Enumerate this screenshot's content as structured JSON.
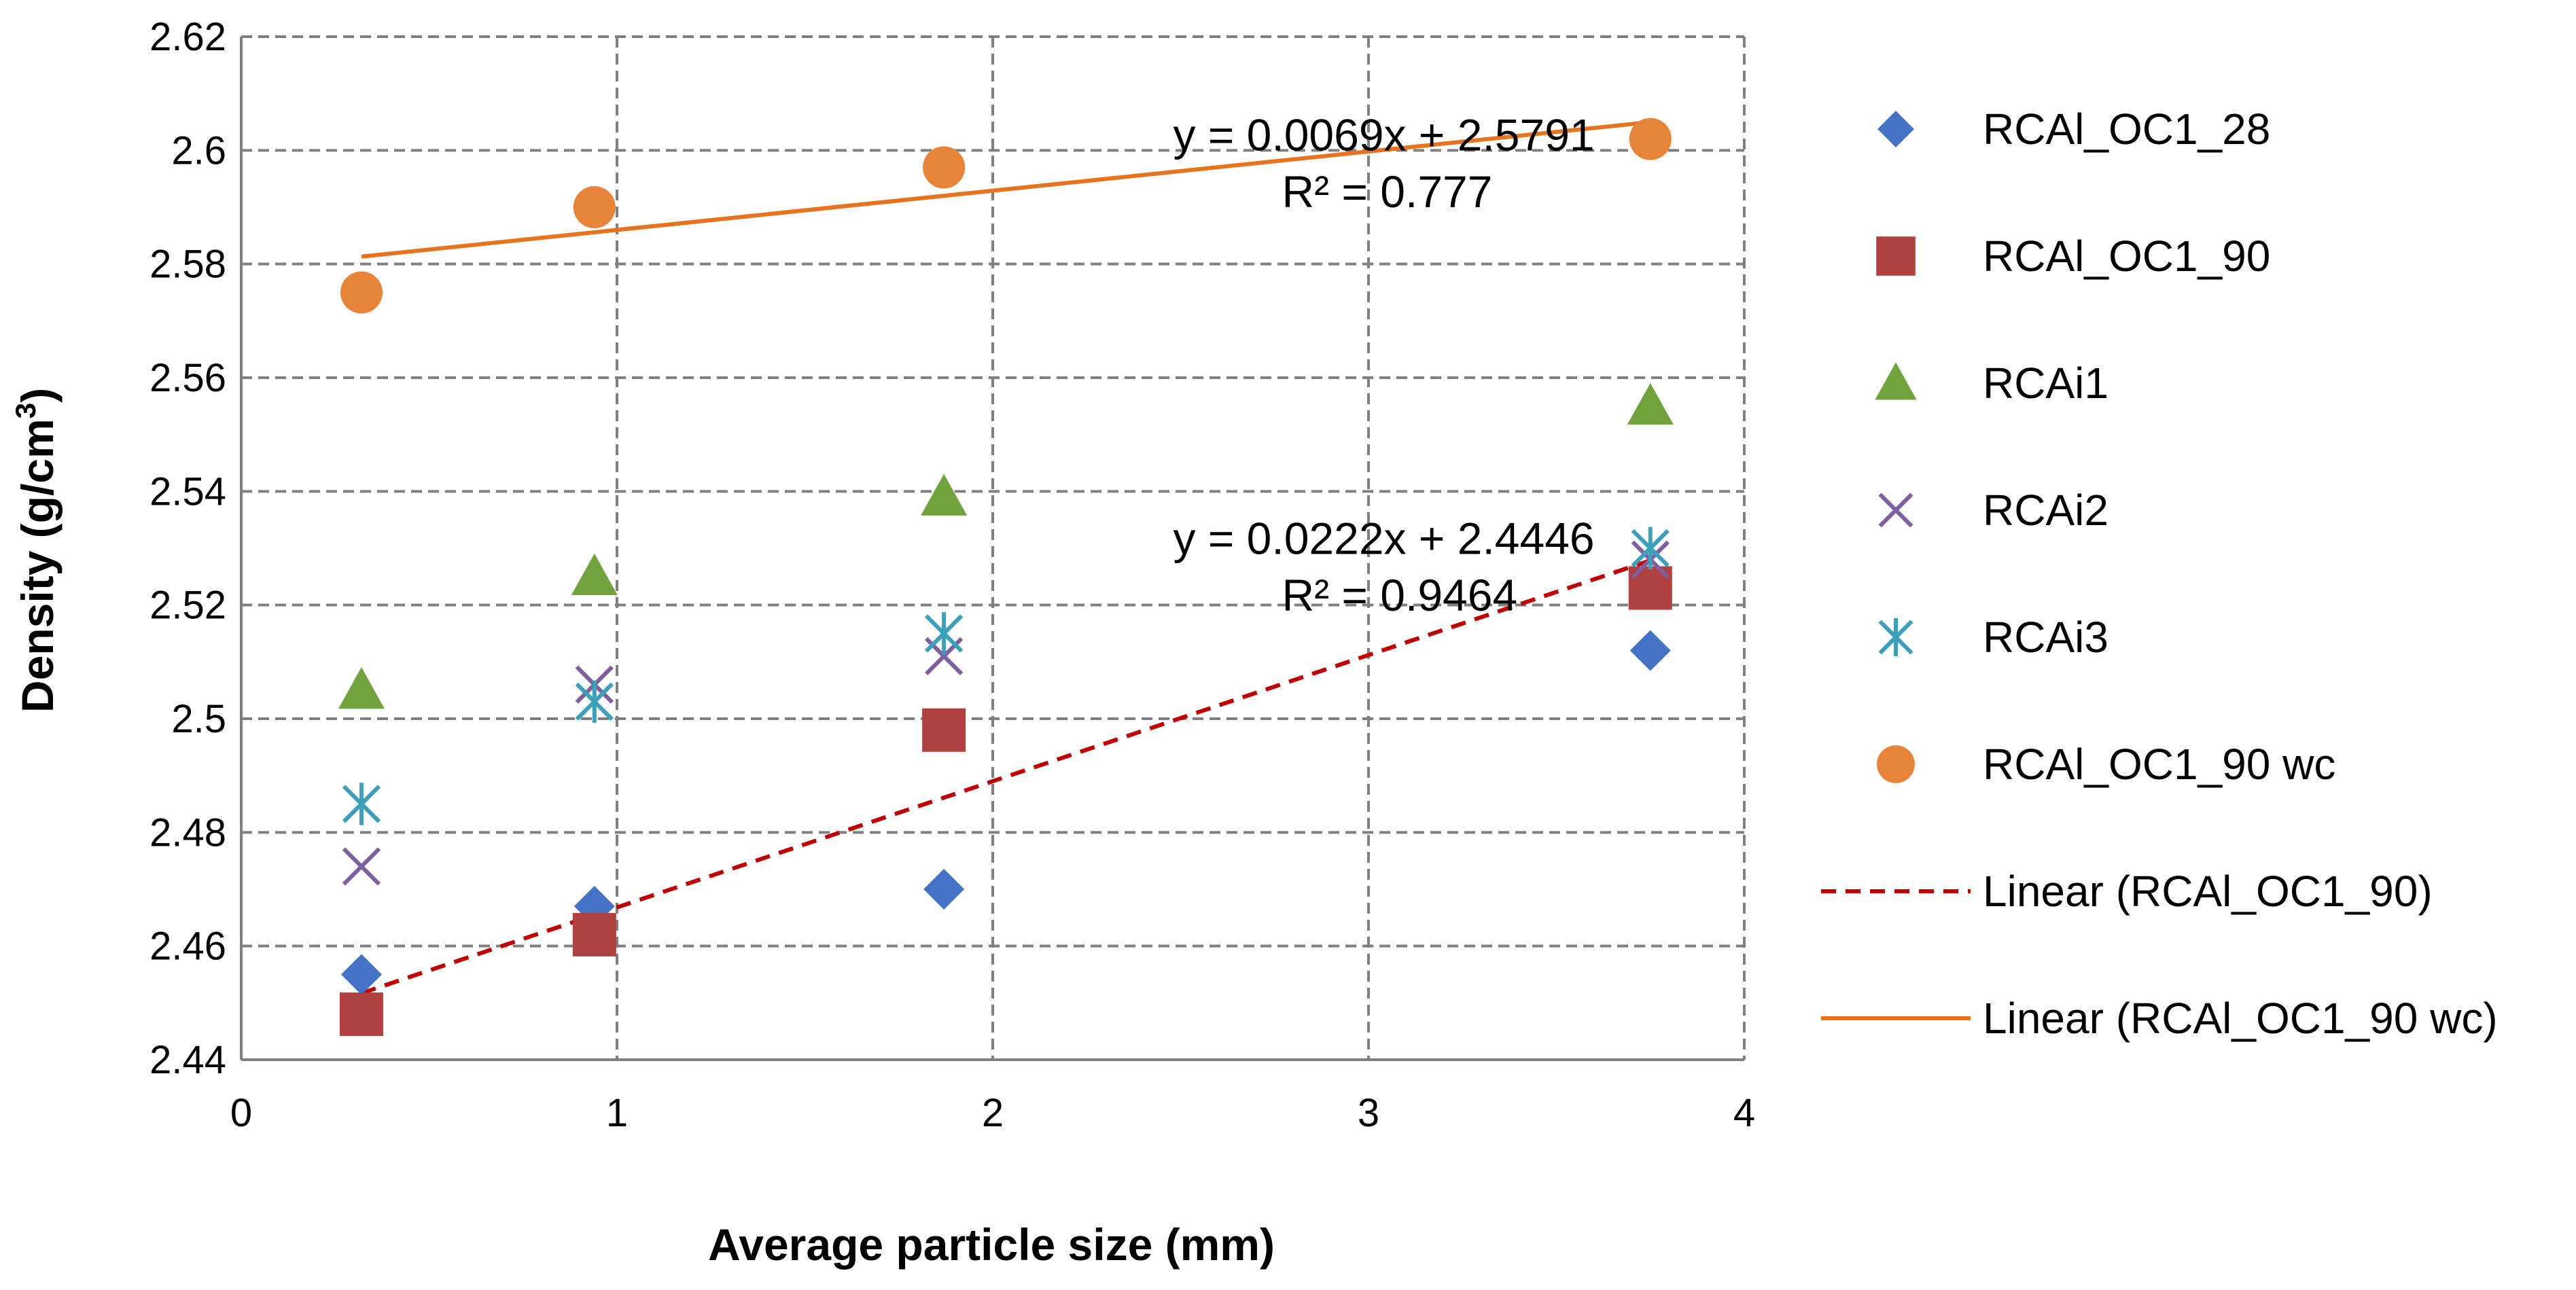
{
  "chart_data": {
    "type": "scatter",
    "title": "",
    "xlabel": "Average particle size (mm)",
    "ylabel_main": "Density (g/cm",
    "ylabel_sup": "3",
    "ylabel_close": ")",
    "xlim": [
      0,
      4
    ],
    "ylim": [
      2.44,
      2.62
    ],
    "x_ticks": [
      0,
      1,
      2,
      3,
      4
    ],
    "x_tick_labels": [
      "0",
      "1",
      "2",
      "3",
      "4"
    ],
    "y_ticks": [
      2.44,
      2.46,
      2.48,
      2.5,
      2.52,
      2.54,
      2.56,
      2.58,
      2.6,
      2.62
    ],
    "y_tick_labels": [
      "2.44",
      "2.46",
      "2.48",
      "2.5",
      "2.52",
      "2.54",
      "2.56",
      "2.58",
      "2.6",
      "2.62"
    ],
    "grid": true,
    "legend_position": "right",
    "x": [
      0.32,
      0.94,
      1.87,
      3.75
    ],
    "series": [
      {
        "name": "RCAl_OC1_28",
        "marker": "diamond",
        "color": "#4472C4",
        "values": [
          2.455,
          2.467,
          2.47,
          2.512
        ]
      },
      {
        "name": "RCAl_OC1_90",
        "marker": "square",
        "color": "#B0413E",
        "values": [
          2.448,
          2.462,
          2.498,
          2.523
        ]
      },
      {
        "name": "RCAi1",
        "marker": "triangle",
        "color": "#70A23D",
        "values": [
          2.505,
          2.525,
          2.539,
          2.555
        ]
      },
      {
        "name": "RCAi2",
        "marker": "x",
        "color": "#7E5FA0",
        "values": [
          2.474,
          2.506,
          2.511,
          2.528
        ]
      },
      {
        "name": "RCAi3",
        "marker": "star",
        "color": "#3BA0B8",
        "values": [
          2.485,
          2.503,
          2.515,
          2.53
        ]
      },
      {
        "name": "RCAl_OC1_90 wc",
        "marker": "circle",
        "color": "#E8843A",
        "values": [
          2.575,
          2.59,
          2.597,
          2.602
        ]
      }
    ],
    "trendlines": [
      {
        "name": "Linear (RCAl_OC1_90)",
        "style": "dashed",
        "color": "#C00000",
        "slope": 0.0222,
        "intercept": 2.4446,
        "x_range": [
          0.32,
          3.75
        ],
        "equation": "y = 0.0222x + 2.4446",
        "r2": "R² = 0.9464",
        "label_x": 2.48,
        "label_y_eq": 2.529,
        "label_y_r2": 2.519
      },
      {
        "name": "Linear (RCAl_OC1_90 wc)",
        "style": "solid",
        "color": "#E8731E",
        "slope": 0.0069,
        "intercept": 2.5791,
        "x_range": [
          0.32,
          3.75
        ],
        "equation": "y = 0.0069x + 2.5791",
        "r2": "R² = 0.777",
        "label_x": 2.48,
        "label_y_eq": 2.6,
        "label_y_r2": 2.59
      }
    ]
  }
}
